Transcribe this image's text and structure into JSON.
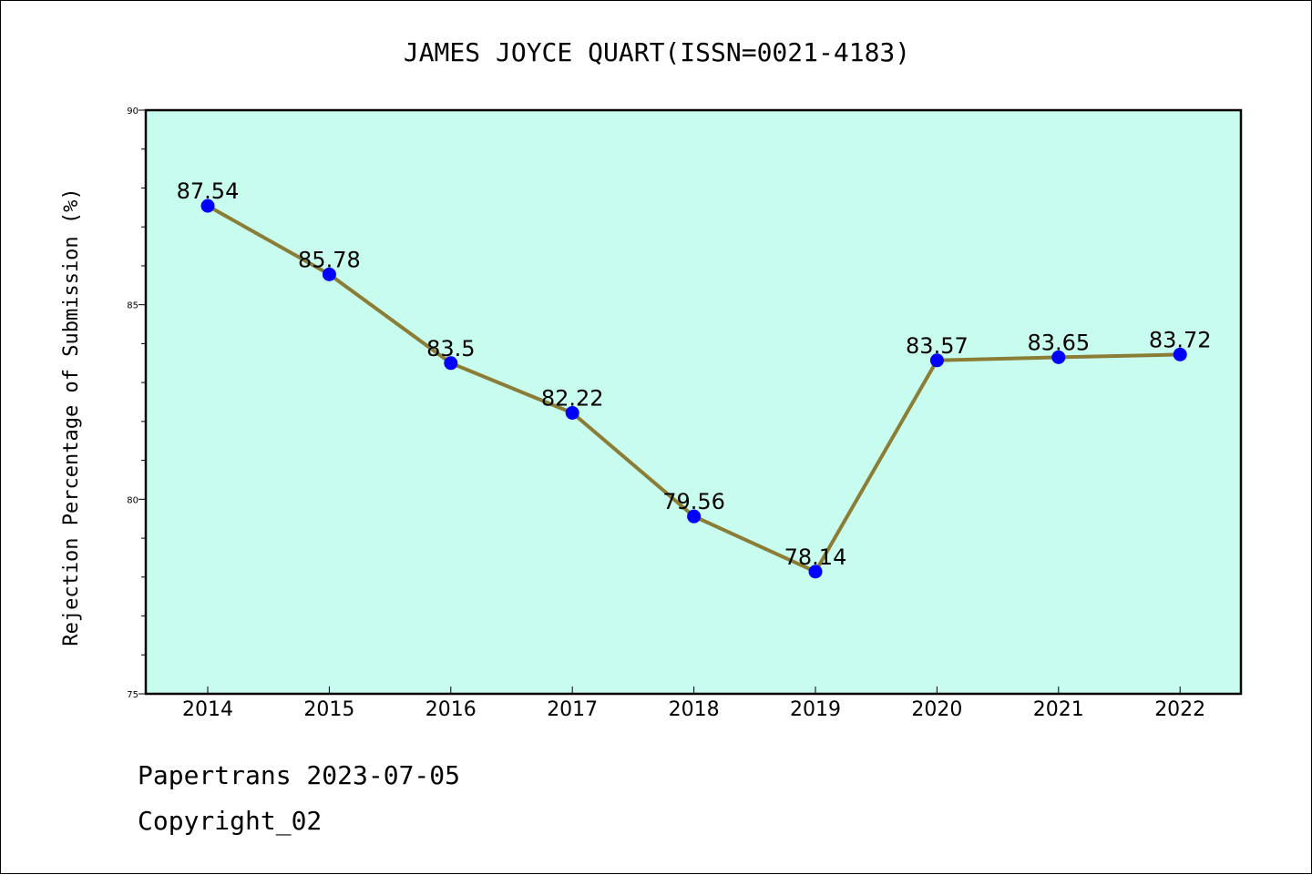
{
  "chart_data": {
    "type": "line",
    "title": "JAMES JOYCE QUART(ISSN=0021-4183)",
    "xlabel": "",
    "ylabel": "Rejection Percentage of Submission (%)",
    "categories": [
      "2014",
      "2015",
      "2016",
      "2017",
      "2018",
      "2019",
      "2020",
      "2021",
      "2022"
    ],
    "values": [
      87.54,
      85.78,
      83.5,
      82.22,
      79.56,
      78.14,
      83.57,
      83.65,
      83.72
    ],
    "data_labels": [
      "87.54",
      "85.78",
      "83.5",
      "82.22",
      "79.56",
      "78.14",
      "83.57",
      "83.65",
      "83.72"
    ],
    "ylim": [
      75,
      90
    ],
    "yticks": [
      75,
      80,
      85,
      90
    ],
    "grid": false,
    "colors": {
      "plot_background": "#c8fcee",
      "line": "#8b7d35",
      "marker": "#0000ff"
    }
  },
  "footer": {
    "line1": "Papertrans 2023-07-05",
    "line2": "Copyright_02"
  }
}
